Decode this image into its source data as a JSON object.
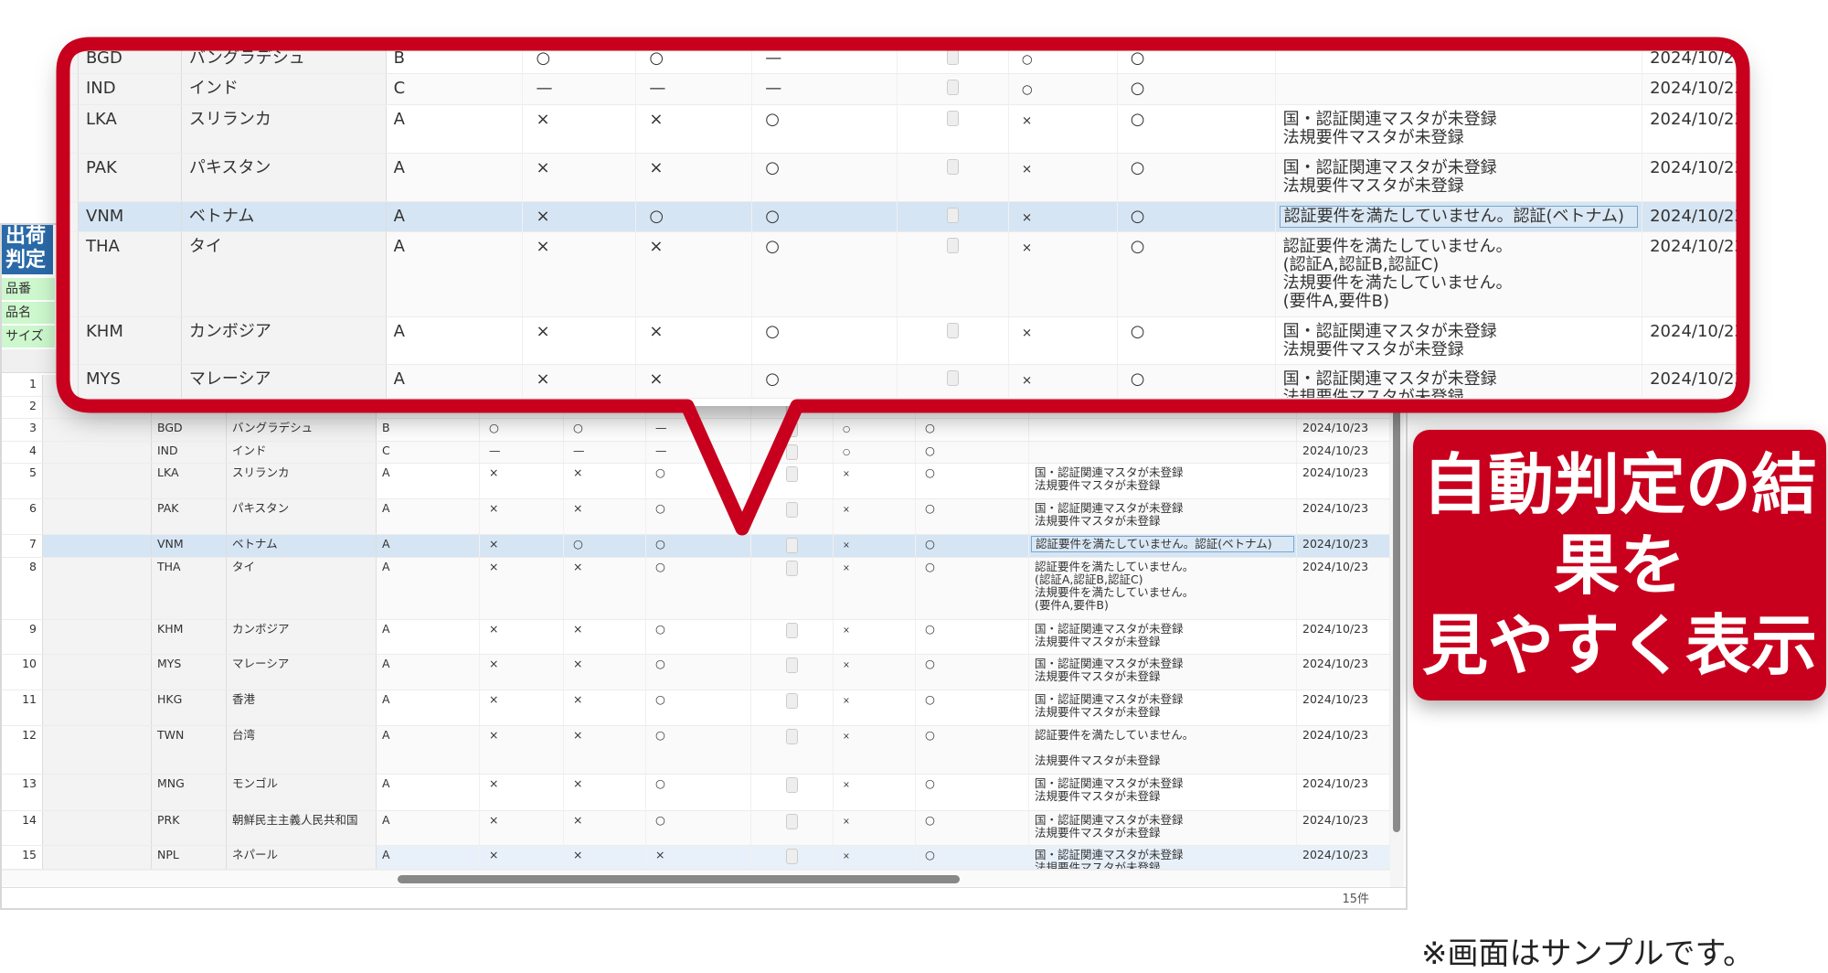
{
  "window": {
    "title": "出荷判定",
    "form_labels": [
      "品番",
      "品名",
      "サイズ"
    ],
    "record_count": "15件"
  },
  "callout": {
    "line1": "自動判定の結果を",
    "line2": "見やすく表示",
    "color": "#c8001e",
    "highlight_rows": [
      2,
      9
    ]
  },
  "note": "※画面はサンプルです。",
  "rows": [
    {
      "no": "1",
      "code": "",
      "name": "",
      "grade": "",
      "c1": "",
      "c2": "",
      "c3": "",
      "chk": false,
      "c5": "",
      "c6": "",
      "msg": "",
      "date": ""
    },
    {
      "no": "2",
      "code": "",
      "name": "",
      "grade": "",
      "c1": "",
      "c2": "",
      "c3": "",
      "chk": false,
      "c5": "",
      "c6": "",
      "msg": "",
      "date": ""
    },
    {
      "no": "3",
      "code": "BGD",
      "name": "バングラデシュ",
      "grade": "B",
      "c1": "○",
      "c2": "○",
      "c3": "—",
      "chk": true,
      "c5": "○",
      "c6": "○",
      "msg": "",
      "date": "2024/10/23"
    },
    {
      "no": "4",
      "code": "IND",
      "name": "インド",
      "grade": "C",
      "c1": "—",
      "c2": "—",
      "c3": "—",
      "chk": true,
      "c5": "○",
      "c6": "○",
      "msg": "",
      "date": "2024/10/23"
    },
    {
      "no": "5",
      "code": "LKA",
      "name": "スリランカ",
      "grade": "A",
      "c1": "×",
      "c2": "×",
      "c3": "○",
      "chk": true,
      "c5": "×",
      "c6": "○",
      "msg": "国・認証関連マスタが未登録\n法規要件マスタが未登録",
      "date": "2024/10/23"
    },
    {
      "no": "6",
      "code": "PAK",
      "name": "パキスタン",
      "grade": "A",
      "c1": "×",
      "c2": "×",
      "c3": "○",
      "chk": true,
      "c5": "×",
      "c6": "○",
      "msg": "国・認証関連マスタが未登録\n法規要件マスタが未登録",
      "date": "2024/10/23"
    },
    {
      "no": "7",
      "code": "VNM",
      "name": "ベトナム",
      "grade": "A",
      "c1": "×",
      "c2": "○",
      "c3": "○",
      "chk": true,
      "c5": "×",
      "c6": "○",
      "msg": "認証要件を満たしていません。認証(ベトナム)",
      "date": "2024/10/23",
      "selected": true
    },
    {
      "no": "8",
      "code": "THA",
      "name": "タイ",
      "grade": "A",
      "c1": "×",
      "c2": "×",
      "c3": "○",
      "chk": true,
      "c5": "×",
      "c6": "○",
      "msg": "認証要件を満たしていません。\n(認証A,認証B,認証C)\n法規要件を満たしていません。\n(要件A,要件B)",
      "date": "2024/10/23"
    },
    {
      "no": "9",
      "code": "KHM",
      "name": "カンボジア",
      "grade": "A",
      "c1": "×",
      "c2": "×",
      "c3": "○",
      "chk": true,
      "c5": "×",
      "c6": "○",
      "msg": "国・認証関連マスタが未登録\n法規要件マスタが未登録",
      "date": "2024/10/23"
    },
    {
      "no": "10",
      "code": "MYS",
      "name": "マレーシア",
      "grade": "A",
      "c1": "×",
      "c2": "×",
      "c3": "○",
      "chk": true,
      "c5": "×",
      "c6": "○",
      "msg": "国・認証関連マスタが未登録\n法規要件マスタが未登録",
      "date": "2024/10/23"
    },
    {
      "no": "11",
      "code": "HKG",
      "name": "香港",
      "grade": "A",
      "c1": "×",
      "c2": "×",
      "c3": "○",
      "chk": true,
      "c5": "×",
      "c6": "○",
      "msg": "国・認証関連マスタが未登録\n法規要件マスタが未登録",
      "date": "2024/10/23"
    },
    {
      "no": "12",
      "code": "TWN",
      "name": "台湾",
      "grade": "A",
      "c1": "×",
      "c2": "×",
      "c3": "○",
      "chk": true,
      "c5": "×",
      "c6": "○",
      "msg": "認証要件を満たしていません。\n\n法規要件マスタが未登録",
      "date": "2024/10/23"
    },
    {
      "no": "13",
      "code": "MNG",
      "name": "モンゴル",
      "grade": "A",
      "c1": "×",
      "c2": "×",
      "c3": "○",
      "chk": true,
      "c5": "×",
      "c6": "○",
      "msg": "国・認証関連マスタが未登録\n法規要件マスタが未登録",
      "date": "2024/10/23"
    },
    {
      "no": "14",
      "code": "PRK",
      "name": "朝鮮民主主義人民共和国",
      "grade": "A",
      "c1": "×",
      "c2": "×",
      "c3": "○",
      "chk": true,
      "c5": "×",
      "c6": "○",
      "msg": "国・認証関連マスタが未登録\n法規要件マスタが未登録",
      "date": "2024/10/23"
    },
    {
      "no": "15",
      "code": "NPL",
      "name": "ネパール",
      "grade": "A",
      "c1": "×",
      "c2": "×",
      "c3": "×",
      "chk": true,
      "c5": "×",
      "c6": "○",
      "msg": "国・認証関連マスタが未登録\n法規要件マスタが未登録",
      "date": "2024/10/23",
      "highlight": true
    }
  ]
}
